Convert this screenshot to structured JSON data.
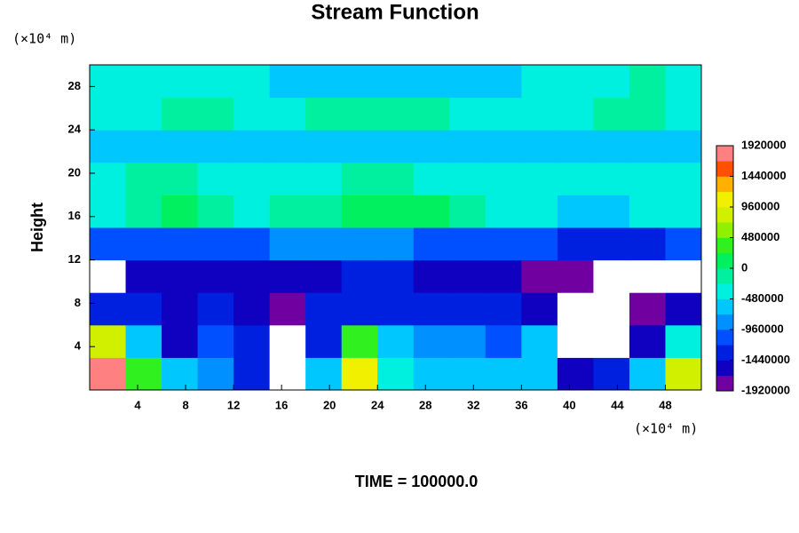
{
  "chart_data": {
    "type": "contour",
    "title": "Stream Function",
    "y_unit": "(×10⁴ m)",
    "x_unit": "(×10⁴ m)",
    "ylabel": "Height",
    "footer": "TIME = 100000.0",
    "xlim": [
      0,
      51
    ],
    "ylim": [
      0,
      30
    ],
    "xticks": [
      4,
      8,
      12,
      16,
      20,
      24,
      28,
      32,
      36,
      40,
      44,
      48
    ],
    "yticks": [
      4,
      8,
      12,
      16,
      20,
      24,
      28
    ],
    "x_edges": [
      0,
      3,
      6,
      9,
      12,
      15,
      18,
      21,
      24,
      27,
      30,
      33,
      36,
      39,
      42,
      45,
      48,
      51
    ],
    "y_edges": [
      0,
      3,
      6,
      9,
      12,
      15,
      18,
      21,
      24,
      27,
      30
    ],
    "z": [
      [
        1900000,
        300000,
        -700000,
        -800000,
        -1300000,
        -1950000,
        -700000,
        1100000,
        -300000,
        -500000,
        -500000,
        -500000,
        -600000,
        -1600000,
        -1300000,
        -700000,
        800000
      ],
      [
        900000,
        -500000,
        -1600000,
        -1000000,
        -1400000,
        -2200000,
        -1400000,
        300000,
        -500000,
        -900000,
        -900000,
        -1200000,
        -700000,
        -2000000,
        -2200000,
        -1600000,
        -400000
      ],
      [
        -1300000,
        -1400000,
        -1500000,
        -1400000,
        -1500000,
        -1700000,
        -1400000,
        -1400000,
        -1300000,
        -1400000,
        -1400000,
        -1400000,
        -1500000,
        -2000000,
        -2100000,
        -1900000,
        -1600000
      ],
      [
        -1950000,
        -1600000,
        -1500000,
        -1600000,
        -1500000,
        -1500000,
        -1500000,
        -1400000,
        -1400000,
        -1500000,
        -1500000,
        -1500000,
        -1700000,
        -1900000,
        -1950000,
        -2200000,
        -2100000
      ],
      [
        -1100000,
        -1100000,
        -1000000,
        -1000000,
        -1000000,
        -900000,
        -800000,
        -900000,
        -900000,
        -1000000,
        -1000000,
        -1100000,
        -1200000,
        -1300000,
        -1300000,
        -1300000,
        -1200000
      ],
      [
        -300000,
        -100000,
        0,
        -100000,
        -300000,
        -200000,
        -100000,
        0,
        100000,
        0,
        -100000,
        -300000,
        -400000,
        -500000,
        -500000,
        -400000,
        -400000
      ],
      [
        -300000,
        -200000,
        -200000,
        -300000,
        -400000,
        -300000,
        -300000,
        -200000,
        -200000,
        -300000,
        -300000,
        -300000,
        -300000,
        -300000,
        -400000,
        -400000,
        -400000
      ],
      [
        -600000,
        -600000,
        -500000,
        -500000,
        -600000,
        -600000,
        -500000,
        -500000,
        -500000,
        -600000,
        -600000,
        -600000,
        -700000,
        -700000,
        -600000,
        -600000,
        -600000
      ],
      [
        -300000,
        -300000,
        -200000,
        -200000,
        -300000,
        -300000,
        -200000,
        -100000,
        -100000,
        -200000,
        -300000,
        -300000,
        -300000,
        -300000,
        -200000,
        -200000,
        -300000
      ],
      [
        -300000,
        -300000,
        -300000,
        -400000,
        -400000,
        -500000,
        -600000,
        -700000,
        -700000,
        -600000,
        -500000,
        -500000,
        -400000,
        -300000,
        -300000,
        -200000,
        -300000
      ]
    ],
    "clim": [
      -1920000,
      1920000
    ],
    "cticks": [
      -1920000,
      -1440000,
      -960000,
      -480000,
      0,
      480000,
      960000,
      1440000,
      1920000
    ],
    "colors": [
      "#7000a0",
      "#1000c0",
      "#0020e0",
      "#0050ff",
      "#0090ff",
      "#00c8ff",
      "#00f0e0",
      "#00f0a0",
      "#00f060",
      "#30f020",
      "#90f000",
      "#d0f000",
      "#f0f000",
      "#ffb000",
      "#ff5000",
      "#ff8080"
    ]
  }
}
